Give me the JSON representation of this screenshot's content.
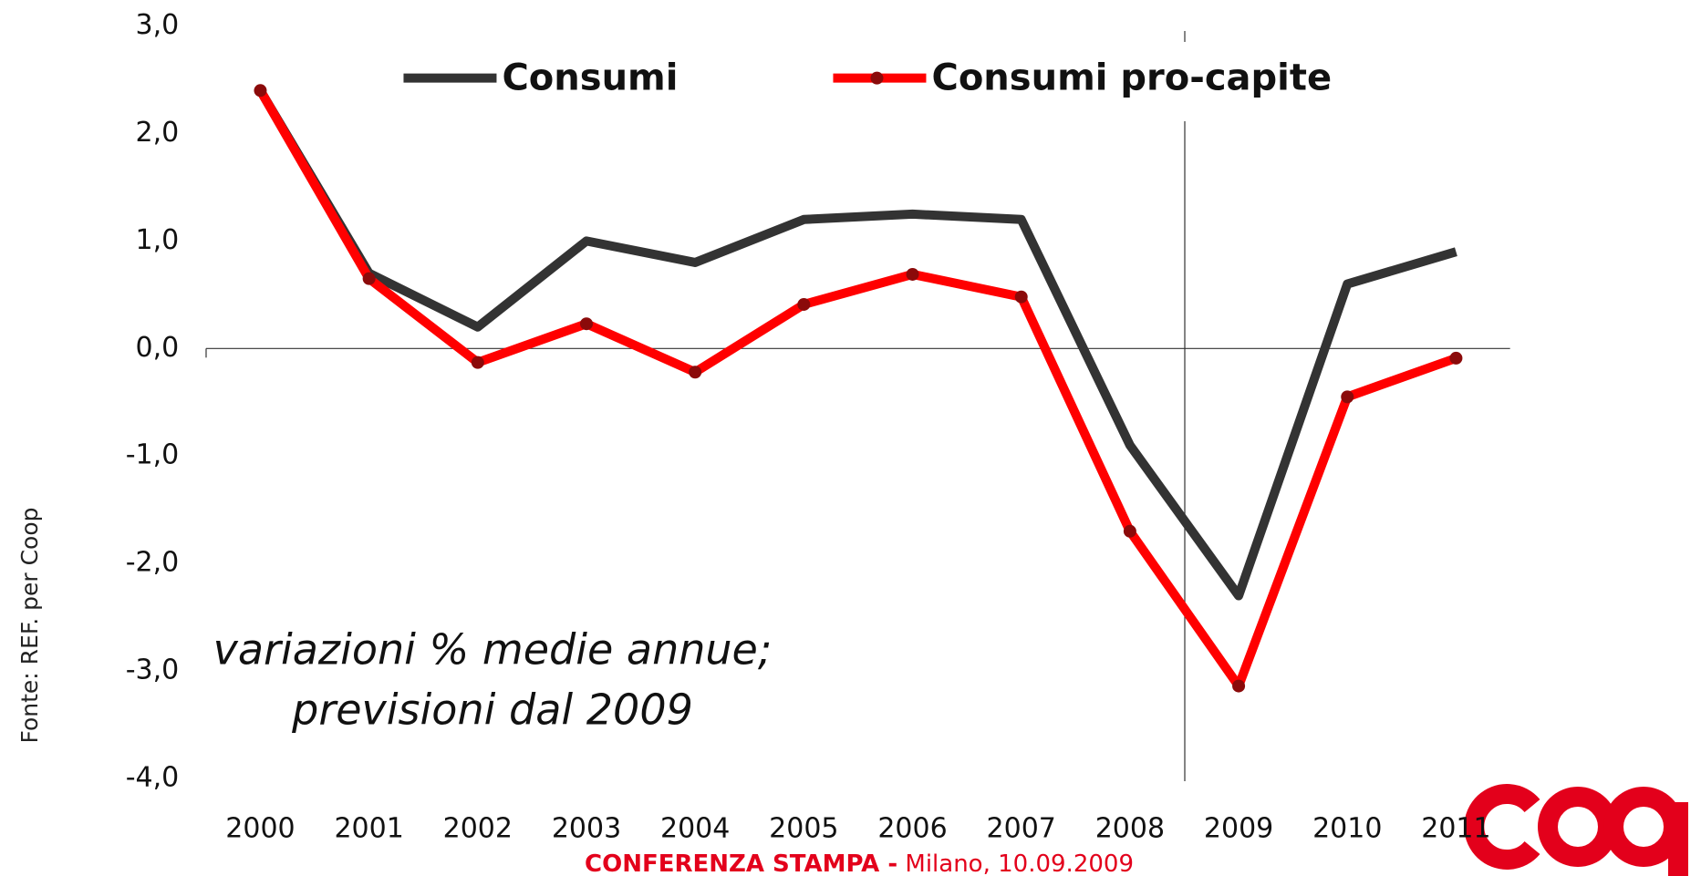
{
  "chart_data": {
    "type": "line",
    "categories": [
      "2000",
      "2001",
      "2002",
      "2003",
      "2004",
      "2005",
      "2006",
      "2007",
      "2008",
      "2009",
      "2010",
      "2011"
    ],
    "series": [
      {
        "name": "Consumi",
        "color": "#333333",
        "marker": false,
        "values": [
          2.4,
          0.7,
          0.2,
          1.0,
          0.8,
          1.2,
          1.25,
          1.2,
          -0.9,
          -2.3,
          0.6,
          0.9
        ]
      },
      {
        "name": "Consumi pro-capite",
        "color": "#ff0000",
        "marker": true,
        "marker_color": "#8b0a0a",
        "values": [
          2.4,
          0.65,
          -0.13,
          0.23,
          -0.22,
          0.41,
          0.69,
          0.48,
          -1.7,
          -3.14,
          -0.45,
          -0.09
        ]
      }
    ],
    "ylim": [
      -4.0,
      3.0
    ],
    "yticks": [
      {
        "value": 3,
        "label": "3,0"
      },
      {
        "value": 2,
        "label": "2,0"
      },
      {
        "value": 1,
        "label": "1,0"
      },
      {
        "value": 0,
        "label": "0,0"
      },
      {
        "value": -1,
        "label": "-1,0"
      },
      {
        "value": -2,
        "label": "-2,0"
      },
      {
        "value": -3,
        "label": "-3,0"
      },
      {
        "value": -4,
        "label": "-4,0"
      }
    ],
    "annotation": [
      "variazioni % medie annue;",
      "previsioni dal 2009"
    ],
    "source": "Fonte: REF. per Coop",
    "footer": {
      "bold": "CONFERENZA STAMPA -",
      "text": "Milano, 10.09.2009"
    }
  }
}
